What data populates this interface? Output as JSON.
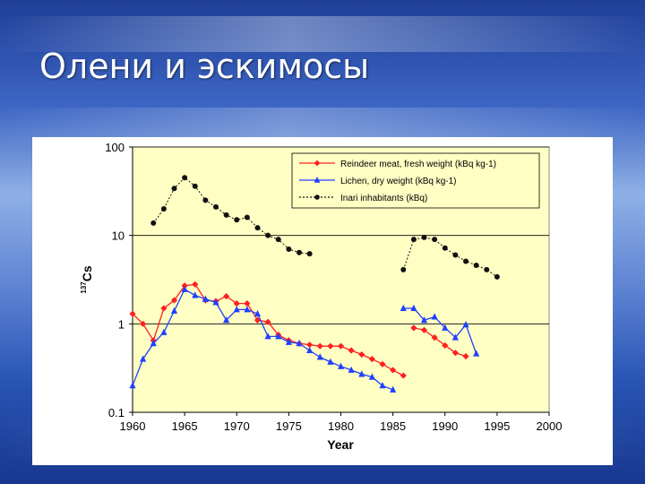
{
  "slide": {
    "title": "Олени и эскимосы"
  },
  "chart_data": {
    "type": "line",
    "xlabel": "Year",
    "ylabel": "137Cs",
    "ylabel_parts": {
      "sup": "137",
      "main": "Cs"
    },
    "yscale": "log",
    "ylim": [
      0.1,
      100
    ],
    "xlim": [
      1960,
      2000
    ],
    "x_ticks": [
      "1960",
      "1965",
      "1970",
      "1975",
      "1980",
      "1985",
      "1990",
      "1995",
      "2000"
    ],
    "y_ticks": [
      "0.1",
      "1",
      "10",
      "100"
    ],
    "grid": "horizontal at 1, 10, 100",
    "plot_background": "#ffffc4",
    "legend_position": "top-right",
    "series": [
      {
        "name": "Reindeer meat, fresh weight (kBq kg-1)",
        "color": "#ff2020",
        "marker": "diamond",
        "segments": [
          [
            [
              1960,
              1.3
            ],
            [
              1961,
              1.0
            ],
            [
              1962,
              0.65
            ],
            [
              1963,
              1.5
            ],
            [
              1964,
              1.85
            ],
            [
              1965,
              2.7
            ],
            [
              1966,
              2.8
            ],
            [
              1967,
              1.85
            ],
            [
              1968,
              1.8
            ],
            [
              1969,
              2.05
            ],
            [
              1970,
              1.7
            ],
            [
              1971,
              1.7
            ],
            [
              1972,
              1.1
            ],
            [
              1973,
              1.05
            ],
            [
              1974,
              0.75
            ],
            [
              1975,
              0.65
            ],
            [
              1976,
              0.6
            ],
            [
              1977,
              0.58
            ],
            [
              1978,
              0.56
            ],
            [
              1979,
              0.56
            ],
            [
              1980,
              0.56
            ],
            [
              1981,
              0.5
            ],
            [
              1982,
              0.45
            ],
            [
              1983,
              0.4
            ],
            [
              1984,
              0.35
            ],
            [
              1985,
              0.3
            ],
            [
              1986,
              0.26
            ]
          ],
          [
            [
              1987,
              0.9
            ],
            [
              1988,
              0.85
            ],
            [
              1989,
              0.7
            ],
            [
              1990,
              0.57
            ],
            [
              1991,
              0.47
            ],
            [
              1992,
              0.43
            ]
          ]
        ]
      },
      {
        "name": "Lichen, dry weight (kBq kg-1)",
        "color": "#2040ff",
        "marker": "triangle",
        "segments": [
          [
            [
              1960,
              0.2
            ],
            [
              1961,
              0.4
            ],
            [
              1962,
              0.6
            ],
            [
              1963,
              0.8
            ],
            [
              1964,
              1.4
            ],
            [
              1965,
              2.45
            ],
            [
              1966,
              2.1
            ],
            [
              1967,
              1.9
            ],
            [
              1968,
              1.75
            ],
            [
              1969,
              1.1
            ],
            [
              1970,
              1.45
            ],
            [
              1971,
              1.45
            ],
            [
              1972,
              1.3
            ],
            [
              1973,
              0.72
            ],
            [
              1974,
              0.72
            ],
            [
              1975,
              0.62
            ],
            [
              1976,
              0.6
            ],
            [
              1977,
              0.5
            ],
            [
              1978,
              0.42
            ],
            [
              1979,
              0.37
            ],
            [
              1980,
              0.33
            ],
            [
              1981,
              0.3
            ],
            [
              1982,
              0.27
            ],
            [
              1983,
              0.25
            ],
            [
              1984,
              0.2
            ],
            [
              1985,
              0.18
            ]
          ],
          [
            [
              1986,
              1.5
            ],
            [
              1987,
              1.5
            ],
            [
              1988,
              1.1
            ],
            [
              1989,
              1.2
            ],
            [
              1990,
              0.9
            ],
            [
              1991,
              0.7
            ],
            [
              1992,
              0.98
            ],
            [
              1993,
              0.46
            ]
          ]
        ]
      },
      {
        "name": "Inari inhabitants (kBq)",
        "color": "#111111",
        "marker": "circle",
        "segments": [
          [
            [
              1962,
              13.8
            ],
            [
              1963,
              20
            ],
            [
              1964,
              34
            ],
            [
              1965,
              45
            ],
            [
              1966,
              36
            ],
            [
              1967,
              25
            ],
            [
              1968,
              21
            ],
            [
              1969,
              17
            ],
            [
              1970,
              15
            ],
            [
              1971,
              16
            ],
            [
              1972,
              12.2
            ],
            [
              1973,
              10
            ],
            [
              1974,
              9
            ],
            [
              1975,
              7
            ],
            [
              1976,
              6.4
            ],
            [
              1977,
              6.2
            ]
          ],
          [
            [
              1986,
              4.1
            ],
            [
              1987,
              9
            ],
            [
              1988,
              9.5
            ],
            [
              1989,
              9
            ],
            [
              1990,
              7.2
            ],
            [
              1991,
              6
            ],
            [
              1992,
              5.1
            ],
            [
              1993,
              4.6
            ],
            [
              1994,
              4.1
            ],
            [
              1995,
              3.4
            ]
          ]
        ]
      }
    ]
  }
}
